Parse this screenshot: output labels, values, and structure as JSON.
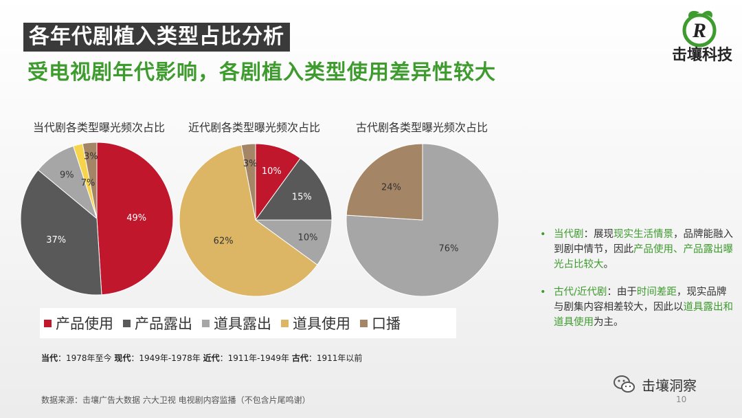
{
  "header": {
    "title": "各年代剧植入类型占比分析",
    "subtitle": "受电视剧年代影响，各剧植入类型使用差异性较大"
  },
  "brand": {
    "name": "击壤科技",
    "logo_letter": "R"
  },
  "colors": {
    "产品使用": "#c0172d",
    "产品露出": "#595959",
    "道具露出": "#a6a6a6",
    "道具使用": "#dcb565",
    "口播": "#a48566",
    "small_yellow": "#f7d44c",
    "accent_green": "#3e9b2e"
  },
  "chart_data": [
    {
      "type": "pie",
      "title": "当代剧各类型曝光频次占比",
      "slices": [
        {
          "label": "产品使用",
          "value": 49,
          "text": "49%",
          "color": "#c0172d"
        },
        {
          "label": "产品露出",
          "value": 37,
          "text": "37%",
          "color": "#595959"
        },
        {
          "label": "道具露出",
          "value": 9,
          "text": "9%",
          "color": "#a6a6a6"
        },
        {
          "label": "道具使用",
          "value": 2,
          "text": "",
          "color": "#f7d44c"
        },
        {
          "label": "口播",
          "value": 3,
          "text": "3%",
          "color": "#a48566"
        }
      ],
      "extra_labels": [
        "7%"
      ]
    },
    {
      "type": "pie",
      "title": "近代剧各类型曝光频次占比",
      "slices": [
        {
          "label": "产品使用",
          "value": 10,
          "text": "10%",
          "color": "#c0172d"
        },
        {
          "label": "产品露出",
          "value": 15,
          "text": "15%",
          "color": "#595959"
        },
        {
          "label": "道具露出",
          "value": 10,
          "text": "10%",
          "color": "#a6a6a6"
        },
        {
          "label": "道具使用",
          "value": 62,
          "text": "62%",
          "color": "#dcb565"
        },
        {
          "label": "口播",
          "value": 3,
          "text": "3%",
          "color": "#a48566"
        }
      ]
    },
    {
      "type": "pie",
      "title": "古代剧各类型曝光频次占比",
      "slices": [
        {
          "label": "道具露出",
          "value": 76,
          "text": "76%",
          "color": "#a6a6a6"
        },
        {
          "label": "口播",
          "value": 24,
          "text": "24%",
          "color": "#a48566"
        }
      ]
    }
  ],
  "legend": [
    {
      "label": "产品使用",
      "color": "#c0172d"
    },
    {
      "label": "产品露出",
      "color": "#595959"
    },
    {
      "label": "道具露出",
      "color": "#a6a6a6"
    },
    {
      "label": "道具使用",
      "color": "#dcb565"
    },
    {
      "label": "口播",
      "color": "#a48566"
    }
  ],
  "era_note": {
    "k1": "当代",
    "v1": "：1978年至今 ",
    "k2": "现代",
    "v2": "：1949年-1978年 ",
    "k3": "近代",
    "v3": "：1911年-1949年 ",
    "k4": "古代",
    "v4": "：1911年以前"
  },
  "bullets": [
    {
      "segments": [
        {
          "text": "当代剧",
          "green": true
        },
        {
          "text": "：展现",
          "green": false
        },
        {
          "text": "现实生活情景",
          "green": true
        },
        {
          "text": "，品牌能融入到剧中情节，因此",
          "green": false
        },
        {
          "text": "产品使用、产品露出曝光占比较大",
          "green": true
        },
        {
          "text": "。",
          "green": false
        }
      ]
    },
    {
      "segments": [
        {
          "text": "古代/近代剧",
          "green": true
        },
        {
          "text": "：由于",
          "green": false
        },
        {
          "text": "时间差距",
          "green": true
        },
        {
          "text": "，现实品牌与剧集内容相差较大，因此以",
          "green": false
        },
        {
          "text": "道具露出和道具使用",
          "green": true
        },
        {
          "text": "为主。",
          "green": false
        }
      ]
    }
  ],
  "source": "数据来源：击壤广告大数据 六大卫视 电视剧内容监播（不包含片尾鸣谢）",
  "page_number": "10",
  "wechat_label": "击壤洞察"
}
